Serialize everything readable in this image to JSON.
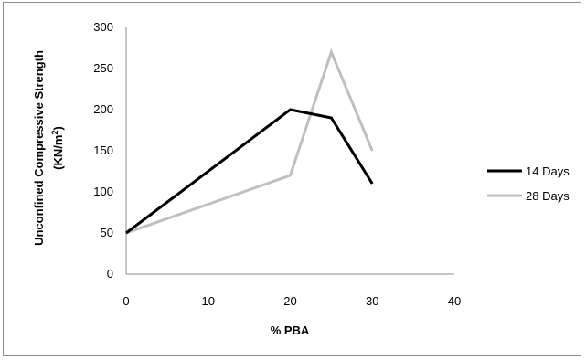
{
  "chart_data": {
    "type": "line",
    "xlabel": "% PBA",
    "ylabel_line1": "Unconfined Compressive Strength",
    "ylabel_line2": "(KN/m",
    "ylabel_sup": "2",
    "ylabel_close": ")",
    "xlim": [
      0,
      40
    ],
    "ylim": [
      0,
      300
    ],
    "xticks": [
      "0",
      "10",
      "20",
      "30",
      "40"
    ],
    "yticks": [
      "0",
      "50",
      "100",
      "150",
      "200",
      "250",
      "300"
    ],
    "grid": false,
    "legend_position": "right",
    "series": [
      {
        "name": "14 Days",
        "color": "#000000",
        "x": [
          0,
          20,
          25,
          30
        ],
        "y": [
          50,
          200,
          190,
          110
        ]
      },
      {
        "name": "28 Days",
        "color": "#bfbfbf",
        "x": [
          0,
          20,
          25,
          30
        ],
        "y": [
          50,
          120,
          270,
          150
        ]
      }
    ]
  }
}
